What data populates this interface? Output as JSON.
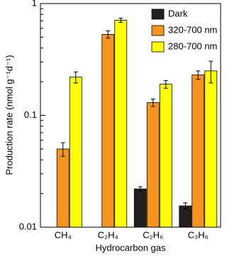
{
  "chart_data": {
    "type": "bar",
    "x_label": "Hydrocarbon gas",
    "y_label": "Production rate (nmol g⁻¹d⁻¹)",
    "categories": [
      "CH₄",
      "C₂H₄",
      "C₂H₆",
      "C₃H₆"
    ],
    "series": [
      {
        "name": "Dark",
        "color": "#231f20",
        "values": [
          null,
          null,
          0.022,
          0.0155
        ],
        "errors": [
          null,
          null,
          0.001,
          0.001
        ]
      },
      {
        "name": "320-700 nm",
        "color": "#f7941d",
        "values": [
          0.05,
          0.53,
          0.13,
          0.23
        ],
        "errors": [
          0.007,
          0.04,
          0.01,
          0.02
        ]
      },
      {
        "name": "280-700 nm",
        "color": "#ffff00",
        "values": [
          0.22,
          0.71,
          0.19,
          0.25
        ],
        "errors": [
          0.025,
          0.03,
          0.015,
          0.055
        ]
      }
    ],
    "log_y": true,
    "ylim": [
      0.01,
      1
    ],
    "yticks": [
      0.01,
      0.1,
      1
    ],
    "yminorticks": [
      0.02,
      0.03,
      0.04,
      0.05,
      0.06,
      0.07,
      0.08,
      0.09,
      0.2,
      0.3,
      0.4,
      0.5,
      0.6,
      0.7,
      0.8,
      0.9
    ],
    "legend": "upper right"
  }
}
